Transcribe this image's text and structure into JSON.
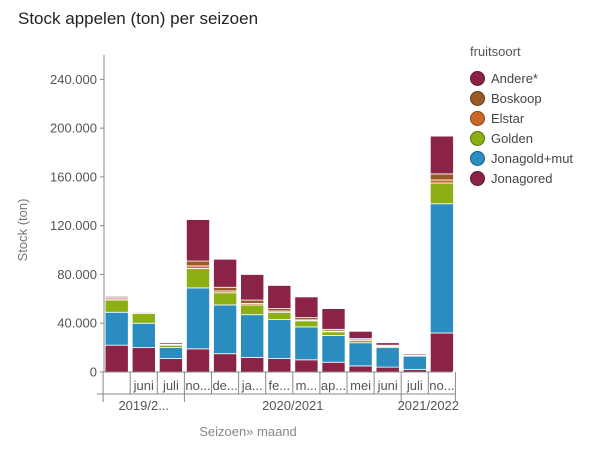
{
  "chart_data": {
    "type": "bar",
    "stacked": true,
    "title": "Stock appelen (ton) per seizoen",
    "xlabel": "Seizoen» maand",
    "ylabel": "Stock (ton)",
    "ylim": [
      0,
      260000
    ],
    "yticks": [
      0,
      40000,
      80000,
      120000,
      160000,
      200000,
      240000
    ],
    "ytick_labels": [
      "0",
      "40.000",
      "80.000",
      "120.000",
      "160.000",
      "200.000",
      "240.000"
    ],
    "categories": [
      "",
      "juni",
      "juli",
      "no...",
      "de...",
      "ja...",
      "fe...",
      "m...",
      "ap...",
      "mei",
      "juni",
      "juli",
      "no..."
    ],
    "groups": [
      {
        "label": "2019/2...",
        "count": 3
      },
      {
        "label": "2020/2021",
        "count": 8
      },
      {
        "label": "2021/2022",
        "count": 2
      }
    ],
    "legend_title": "fruitsoort",
    "legend_position": "right",
    "grid": false,
    "series": [
      {
        "name": "Jonagored",
        "color": "#8b2346",
        "values": [
          22000,
          20000,
          11000,
          19000,
          15000,
          12000,
          11000,
          10000,
          8000,
          5000,
          4000,
          2000,
          32000
        ]
      },
      {
        "name": "Jonagold+mut",
        "color": "#2a8cbf",
        "values": [
          27000,
          20000,
          9000,
          50000,
          40000,
          35000,
          32000,
          27000,
          22000,
          19000,
          16000,
          11000,
          106000
        ]
      },
      {
        "name": "Golden",
        "color": "#8caf14",
        "values": [
          10000,
          8000,
          2000,
          16000,
          10000,
          8000,
          6000,
          5000,
          3000,
          2000,
          1000,
          500,
          17000
        ]
      },
      {
        "name": "Elstar",
        "color": "#c8692a",
        "values": [
          1000,
          800,
          400,
          2000,
          1500,
          1200,
          1000,
          800,
          600,
          400,
          300,
          200,
          2500
        ]
      },
      {
        "name": "Boskoop",
        "color": "#9a5a26",
        "values": [
          1000,
          800,
          400,
          4000,
          3000,
          2800,
          2000,
          1800,
          1400,
          1000,
          700,
          300,
          5000
        ]
      },
      {
        "name": "Andere*",
        "color": "#8b2346",
        "values": [
          1000,
          500,
          1200,
          34000,
          23000,
          21000,
          19000,
          17000,
          17000,
          6000,
          2000,
          1000,
          31000
        ]
      }
    ]
  },
  "legend": {
    "title": "fruitsoort",
    "items": [
      {
        "label": "Andere*",
        "color": "#8b2346"
      },
      {
        "label": "Boskoop",
        "color": "#9a5a26"
      },
      {
        "label": "Elstar",
        "color": "#c8692a"
      },
      {
        "label": "Golden",
        "color": "#8caf14"
      },
      {
        "label": "Jonagold+mut",
        "color": "#2a8cbf"
      },
      {
        "label": "Jonagored",
        "color": "#8b2346"
      }
    ]
  }
}
